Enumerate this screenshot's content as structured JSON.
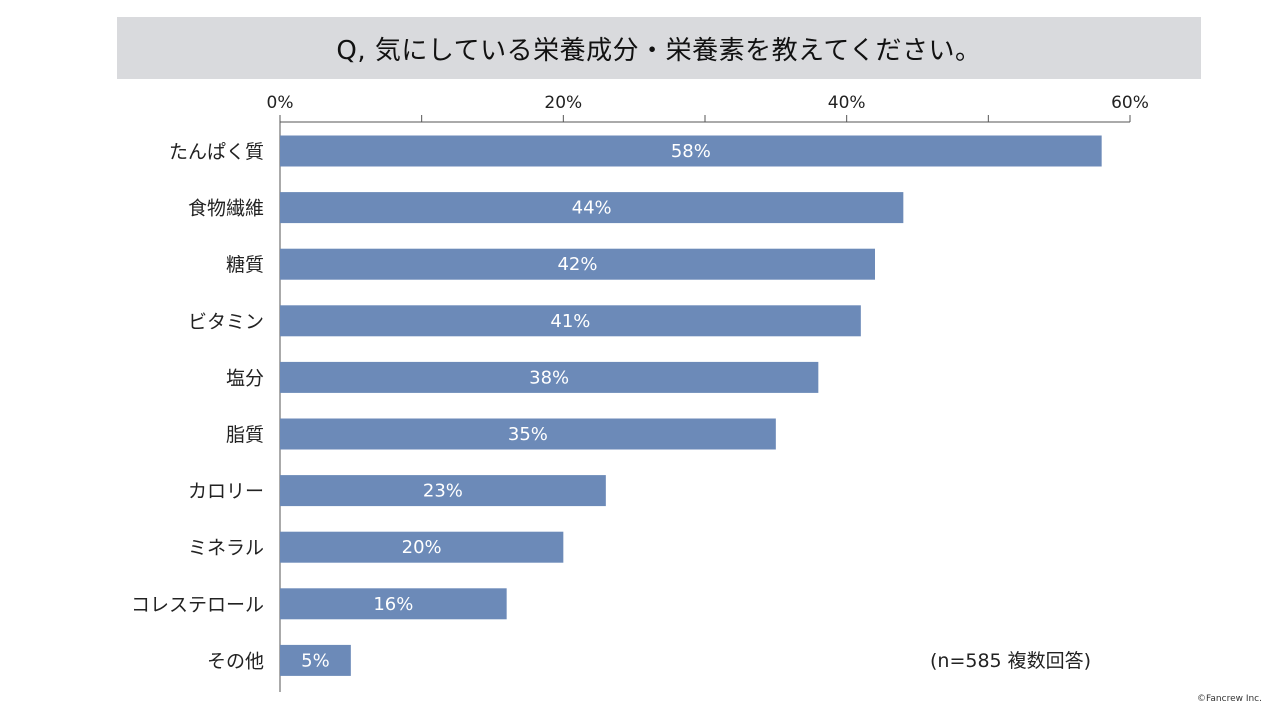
{
  "title": "Q, 気にしている栄養成分・栄養素を教えてください。",
  "note": "(n=585 複数回答)",
  "copyright": "©Fancrew Inc.",
  "colors": {
    "bar": "#6c8ab8",
    "title_bg": "#d9dadd",
    "bar_label": "#ffffff"
  },
  "chart_data": {
    "type": "bar",
    "orientation": "horizontal",
    "categories": [
      "たんぱく質",
      "食物繊維",
      "糖質",
      "ビタミン",
      "塩分",
      "脂質",
      "カロリー",
      "ミネラル",
      "コレステロール",
      "その他"
    ],
    "values": [
      58,
      44,
      42,
      41,
      38,
      35,
      23,
      20,
      16,
      5
    ],
    "value_suffix": "%",
    "xlim": [
      0,
      60
    ],
    "xticks": [
      0,
      20,
      40,
      60
    ],
    "xtick_labels": [
      "0%",
      "20%",
      "40%",
      "60%"
    ],
    "minor_ticks": [
      10,
      30,
      50
    ],
    "axis_position": "top",
    "grid": false,
    "legend": "none"
  }
}
